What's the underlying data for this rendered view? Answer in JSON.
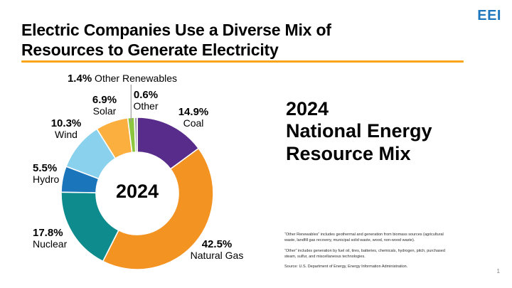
{
  "header": {
    "title": "Electric Companies Use a Diverse Mix of Resources to Generate Electricity",
    "logo_text": "EEI"
  },
  "side_heading": "2024\nNational Energy\nResource Mix",
  "footnotes": [
    "“Other Renewables” includes geothermal and generation from biomass sources (agricultural waste, landfill gas recovery, municipal solid waste, wood, non-wood waste).",
    "“Other” includes generation by fuel oil, tires, batteries, chemicals, hydrogen, pitch, purchased steam, sulfur, and miscellaneous technologies.",
    "Source: U.S. Department of Energy, Energy Information Administration."
  ],
  "page_number": "1",
  "colors": {
    "accent_orange": "#F9A51C",
    "logo_blue": "#1E76BC",
    "leader_line_gray": "#9B9B9D"
  },
  "chart_data": {
    "type": "pie",
    "subtype": "donut",
    "title": "2024 National Energy Resource Mix",
    "center_label": "2024",
    "start_angle_deg": 0,
    "direction": "clockwise",
    "segments": [
      {
        "label": "Coal",
        "pct_label": "14.9%",
        "value": 14.9,
        "color": "#582C8B"
      },
      {
        "label": "Natural Gas",
        "pct_label": "42.5%",
        "value": 42.5,
        "color": "#F39322"
      },
      {
        "label": "Nuclear",
        "pct_label": "17.8%",
        "value": 17.8,
        "color": "#0E8B8D"
      },
      {
        "label": "Hydro",
        "pct_label": "5.5%",
        "value": 5.5,
        "color": "#1B75BB"
      },
      {
        "label": "Wind",
        "pct_label": "10.3%",
        "value": 10.3,
        "color": "#8AD1EE"
      },
      {
        "label": "Solar",
        "pct_label": "6.9%",
        "value": 6.9,
        "color": "#FBAF3F"
      },
      {
        "label": "Other Renewables",
        "pct_label": "1.4%",
        "value": 1.4,
        "color": "#8CC63F"
      },
      {
        "label": "Other",
        "pct_label": "0.6%",
        "value": 0.6,
        "color": "#A7A9AC"
      }
    ]
  }
}
